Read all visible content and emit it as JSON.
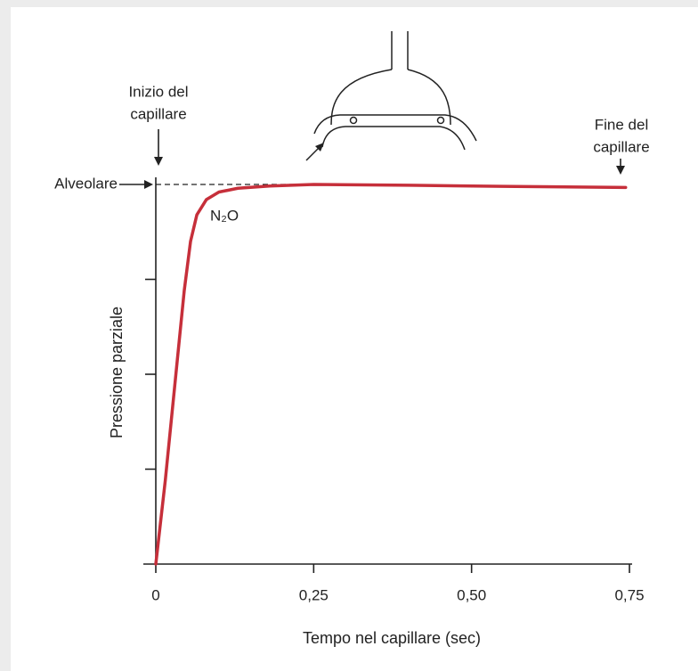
{
  "chart_data": {
    "type": "line",
    "x_label": "Tempo nel capillare (sec)",
    "y_label": "Pressione parziale",
    "start_label": [
      "Inizio del",
      "capillare"
    ],
    "end_label": [
      "Fine del",
      "capillare"
    ],
    "level_label": "Alveolare",
    "x": [
      0,
      0.015,
      0.03,
      0.045,
      0.055,
      0.065,
      0.08,
      0.1,
      0.13,
      0.18,
      0.25,
      0.4,
      0.55,
      0.744
    ],
    "series": [
      {
        "name": "N₂O",
        "color": "#c62f3a",
        "values": [
          0,
          22,
          47,
          72,
          85,
          92,
          96,
          98,
          99,
          99.6,
          100,
          99.8,
          99.5,
          99.2
        ]
      }
    ],
    "level": 100,
    "xlim": [
      0,
      0.75
    ],
    "ylim": [
      0,
      100
    ],
    "xticks": [
      0,
      {
        "value": 0.25,
        "label": "0,25"
      },
      {
        "value": 0.5,
        "label": "0,50"
      },
      {
        "value": 0.75,
        "label": "0,75"
      }
    ],
    "yticks": [
      25,
      50,
      75
    ]
  }
}
